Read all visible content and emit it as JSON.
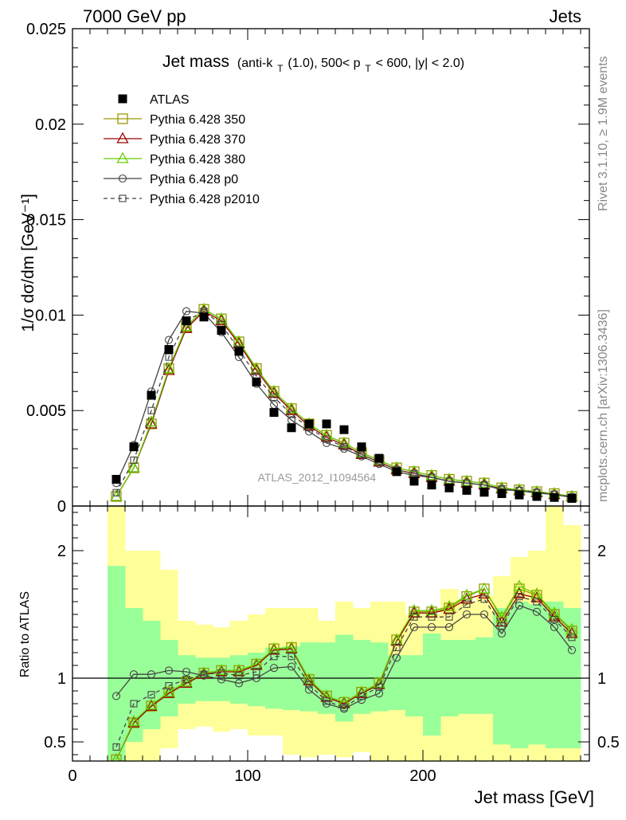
{
  "header": {
    "left": "7000 GeV pp",
    "right": "Jets"
  },
  "side_labels": {
    "rivet": "Rivet 3.1.10, ≥ 1.9M events",
    "mcplots": "mcplots.cern.ch [arXiv:1306.3436]"
  },
  "chart_data": {
    "type": "scatter",
    "title_main": "Jet mass",
    "title_detail": "(anti-k",
    "title_sub_t": "T",
    "title_detail2": "(1.0), 500< p",
    "title_sub_t2": "T",
    "title_detail3": " < 600, |y| < 2.0)",
    "analysis_id": "ATLAS_2012_I1094564",
    "xlabel": "Jet mass [GeV]",
    "ylabel_top": "1/σ dσ/dm [GeV⁻¹]",
    "ylabel_bottom": "Ratio to ATLAS",
    "xlim": [
      0,
      295
    ],
    "ylim_top": [
      0,
      0.025
    ],
    "ylim_bottom": [
      0.35,
      2.35
    ],
    "x_ticks": [
      {
        "v": 0,
        "label": "0"
      },
      {
        "v": 100,
        "label": "100"
      },
      {
        "v": 200,
        "label": "200"
      }
    ],
    "y_ticks_top": [
      {
        "v": 0,
        "label": "0"
      },
      {
        "v": 0.005,
        "label": "0.005"
      },
      {
        "v": 0.01,
        "label": "0.01"
      },
      {
        "v": 0.015,
        "label": "0.015"
      },
      {
        "v": 0.02,
        "label": "0.02"
      },
      {
        "v": 0.025,
        "label": "0.025"
      }
    ],
    "y_ticks_bottom": [
      {
        "v": 0.5,
        "label": "0.5"
      },
      {
        "v": 1,
        "label": "1"
      },
      {
        "v": 2,
        "label": "2"
      }
    ],
    "bins": [
      20,
      30,
      40,
      50,
      60,
      70,
      80,
      90,
      100,
      110,
      120,
      130,
      140,
      150,
      160,
      170,
      180,
      190,
      200,
      210,
      220,
      230,
      240,
      250,
      260,
      270,
      280,
      290
    ],
    "x": [
      25,
      35,
      45,
      55,
      65,
      75,
      85,
      95,
      105,
      115,
      125,
      135,
      145,
      155,
      165,
      175,
      185,
      195,
      205,
      215,
      225,
      235,
      245,
      255,
      265,
      275,
      285
    ],
    "band_green": [
      [
        0.35,
        1.88
      ],
      [
        0.5,
        1.55
      ],
      [
        0.6,
        1.45
      ],
      [
        0.7,
        1.3
      ],
      [
        0.8,
        1.18
      ],
      [
        0.82,
        1.16
      ],
      [
        0.82,
        1.16
      ],
      [
        0.8,
        1.18
      ],
      [
        0.78,
        1.2
      ],
      [
        0.76,
        1.24
      ],
      [
        0.75,
        1.25
      ],
      [
        0.74,
        1.28
      ],
      [
        0.72,
        1.28
      ],
      [
        0.66,
        1.34
      ],
      [
        0.72,
        1.3
      ],
      [
        0.74,
        1.28
      ],
      [
        0.75,
        1.18
      ],
      [
        0.7,
        1.18
      ],
      [
        0.55,
        1.35
      ],
      [
        0.7,
        1.3
      ],
      [
        0.72,
        1.3
      ],
      [
        0.72,
        1.32
      ],
      [
        0.48,
        1.55
      ],
      [
        0.45,
        1.6
      ],
      [
        0.48,
        1.58
      ],
      [
        0.45,
        1.6
      ],
      [
        0.45,
        1.55
      ]
    ],
    "band_yellow": [
      [
        0.35,
        2.35
      ],
      [
        0.35,
        2.0
      ],
      [
        0.35,
        2.0
      ],
      [
        0.45,
        1.85
      ],
      [
        0.6,
        1.45
      ],
      [
        0.62,
        1.42
      ],
      [
        0.58,
        1.4
      ],
      [
        0.6,
        1.45
      ],
      [
        0.55,
        1.5
      ],
      [
        0.55,
        1.55
      ],
      [
        0.4,
        1.55
      ],
      [
        0.38,
        1.55
      ],
      [
        0.4,
        1.45
      ],
      [
        0.38,
        1.6
      ],
      [
        0.42,
        1.55
      ],
      [
        0.35,
        1.6
      ],
      [
        0.35,
        1.6
      ],
      [
        0.35,
        1.5
      ],
      [
        0.35,
        1.5
      ],
      [
        0.35,
        1.7
      ],
      [
        0.35,
        1.6
      ],
      [
        0.35,
        1.65
      ],
      [
        0.35,
        1.8
      ],
      [
        0.35,
        1.95
      ],
      [
        0.35,
        2.0
      ],
      [
        0.35,
        2.35
      ],
      [
        0.35,
        2.2
      ]
    ],
    "series": [
      {
        "name": "ATLAS",
        "color": "#000000",
        "marker": "filled-square",
        "values": [
          0.0014,
          0.0031,
          0.0058,
          0.0082,
          0.0097,
          0.0099,
          0.0092,
          0.0081,
          0.0065,
          0.0049,
          0.0041,
          0.0043,
          0.0043,
          0.004,
          0.0031,
          0.0025,
          0.0018,
          0.0013,
          0.0011,
          0.00095,
          0.00082,
          0.00072,
          0.00065,
          0.00058,
          0.0005,
          0.00045,
          0.0004
        ]
      },
      {
        "name": "Pythia 6.428 350",
        "color": "#999900",
        "marker": "open-square",
        "line": "solid",
        "values": [
          0.0005,
          0.002,
          0.0043,
          0.0072,
          0.0094,
          0.0103,
          0.0098,
          0.0086,
          0.0072,
          0.006,
          0.0051,
          0.0043,
          0.0037,
          0.0033,
          0.0028,
          0.0024,
          0.002,
          0.0018,
          0.0016,
          0.0014,
          0.0013,
          0.0012,
          0.00095,
          0.00085,
          0.00075,
          0.00065,
          0.0005
        ]
      },
      {
        "name": "Pythia 6.428 370",
        "color": "#990000",
        "marker": "open-triangle",
        "line": "solid",
        "values": [
          0.0005,
          0.002,
          0.0043,
          0.0071,
          0.0093,
          0.0102,
          0.0097,
          0.0085,
          0.0071,
          0.0059,
          0.005,
          0.0042,
          0.0036,
          0.0032,
          0.0027,
          0.0023,
          0.0019,
          0.0017,
          0.0015,
          0.0013,
          0.0012,
          0.0011,
          0.0009,
          0.0008,
          0.0007,
          0.0006,
          0.00048
        ]
      },
      {
        "name": "Pythia 6.428 380",
        "color": "#66cc00",
        "marker": "open-triangle",
        "line": "solid",
        "values": [
          0.0005,
          0.002,
          0.0044,
          0.0072,
          0.0094,
          0.0103,
          0.0098,
          0.0086,
          0.0072,
          0.006,
          0.0051,
          0.0043,
          0.0037,
          0.0033,
          0.0028,
          0.0024,
          0.002,
          0.0018,
          0.0016,
          0.0014,
          0.0013,
          0.0012,
          0.00095,
          0.00085,
          0.00075,
          0.00065,
          0.0005
        ]
      },
      {
        "name": "Pythia 6.428 p0",
        "color": "#444444",
        "marker": "open-circle",
        "line": "solid",
        "values": [
          0.0012,
          0.0032,
          0.006,
          0.0087,
          0.0102,
          0.0101,
          0.0091,
          0.0078,
          0.0064,
          0.0053,
          0.0045,
          0.0039,
          0.0033,
          0.003,
          0.0026,
          0.0022,
          0.0018,
          0.0016,
          0.0015,
          0.0013,
          0.0012,
          0.0011,
          0.00085,
          0.0008,
          0.00068,
          0.0006,
          0.00045
        ]
      },
      {
        "name": "Pythia 6.428 p2010",
        "color": "#444444",
        "marker": "open-square-small",
        "line": "dashed",
        "values": [
          0.0007,
          0.0024,
          0.005,
          0.0078,
          0.0097,
          0.0102,
          0.0095,
          0.0082,
          0.0068,
          0.0057,
          0.0048,
          0.0041,
          0.0035,
          0.0031,
          0.0027,
          0.0023,
          0.0019,
          0.0017,
          0.0015,
          0.0013,
          0.0012,
          0.0011,
          0.0009,
          0.00082,
          0.00072,
          0.00062,
          0.00048
        ]
      }
    ],
    "ratios": {
      "Pythia 6.428 350": [
        0.36,
        0.65,
        0.78,
        0.89,
        0.97,
        1.04,
        1.06,
        1.06,
        1.11,
        1.23,
        1.24,
        0.99,
        0.86,
        0.81,
        0.89,
        0.96,
        1.3,
        1.52,
        1.52,
        1.55,
        1.64,
        1.7,
        1.47,
        1.7,
        1.65,
        1.5,
        1.37
      ],
      "Pythia 6.428 370": [
        0.36,
        0.65,
        0.78,
        0.88,
        0.96,
        1.03,
        1.05,
        1.05,
        1.1,
        1.22,
        1.23,
        0.98,
        0.85,
        0.8,
        0.88,
        0.95,
        1.29,
        1.51,
        1.51,
        1.54,
        1.62,
        1.66,
        1.44,
        1.66,
        1.63,
        1.48,
        1.35
      ],
      "Pythia 6.428 380": [
        0.36,
        0.66,
        0.79,
        0.89,
        0.97,
        1.04,
        1.06,
        1.06,
        1.11,
        1.23,
        1.24,
        0.99,
        0.86,
        0.81,
        0.89,
        0.96,
        1.3,
        1.53,
        1.53,
        1.56,
        1.65,
        1.7,
        1.48,
        1.72,
        1.66,
        1.51,
        1.38
      ],
      "Pythia 6.428 p0": [
        0.86,
        1.03,
        1.03,
        1.06,
        1.05,
        1.02,
        0.99,
        0.96,
        1.0,
        1.08,
        1.09,
        0.91,
        0.8,
        0.76,
        0.83,
        0.88,
        1.16,
        1.4,
        1.4,
        1.4,
        1.5,
        1.5,
        1.35,
        1.57,
        1.52,
        1.4,
        1.22
      ],
      "Pythia 6.428 p2010": [
        0.46,
        0.8,
        0.87,
        0.94,
        0.99,
        1.03,
        1.04,
        1.02,
        1.05,
        1.17,
        1.17,
        0.95,
        0.82,
        0.77,
        0.86,
        0.93,
        1.24,
        1.48,
        1.48,
        1.48,
        1.58,
        1.62,
        1.41,
        1.64,
        1.6,
        1.46,
        1.32
      ]
    }
  }
}
